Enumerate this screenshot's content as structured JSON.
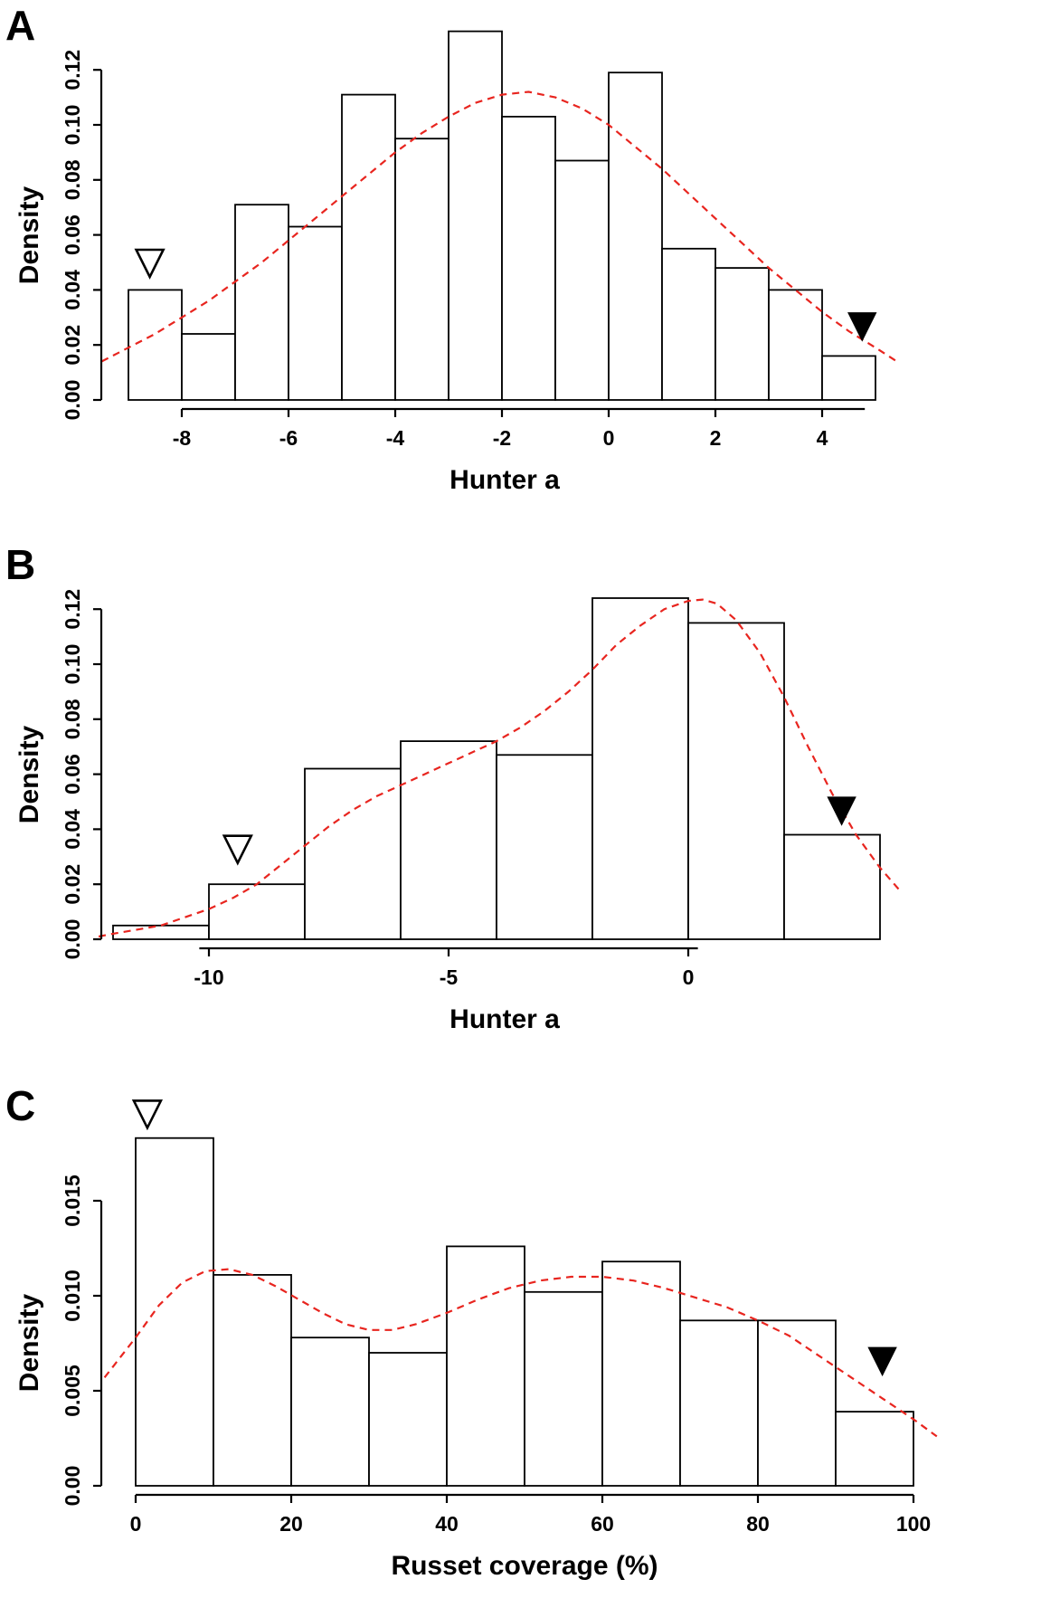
{
  "figure": {
    "background": "#ffffff",
    "curve_color": "#e8251f",
    "axis_color": "#000000",
    "bar_fill": "#ffffff"
  },
  "chart_data": [
    {
      "type": "bar",
      "subtype": "histogram",
      "panel_label": "A",
      "xlabel": "Hunter a",
      "ylabel": "Density",
      "bin_start": -9,
      "bin_width": 1,
      "values": [
        0.04,
        0.024,
        0.071,
        0.063,
        0.111,
        0.095,
        0.134,
        0.103,
        0.087,
        0.119,
        0.055,
        0.048,
        0.04,
        0.016
      ],
      "xticks": [
        -8,
        -6,
        -4,
        -2,
        0,
        2,
        4
      ],
      "xtick_labels": [
        "-8",
        "-6",
        "-4",
        "-2",
        "0",
        "2",
        "4"
      ],
      "yticks": [
        0,
        0.02,
        0.04,
        0.06,
        0.08,
        0.1,
        0.12
      ],
      "ytick_labels": [
        "0.00",
        "0.02",
        "0.04",
        "0.06",
        "0.08",
        "0.10",
        "0.12"
      ],
      "xlim": [
        -9.6,
        5.5
      ],
      "ylim": [
        0,
        0.138
      ],
      "axis_x_range": [
        -8,
        4.8
      ],
      "axis_y_range": [
        0,
        0.12
      ],
      "grid": false,
      "legend": "none",
      "density_curve": [
        [
          -9.5,
          0.014
        ],
        [
          -9,
          0.019
        ],
        [
          -8.5,
          0.024
        ],
        [
          -8,
          0.03
        ],
        [
          -7.5,
          0.036
        ],
        [
          -7,
          0.043
        ],
        [
          -6.5,
          0.05
        ],
        [
          -6,
          0.058
        ],
        [
          -5.5,
          0.066
        ],
        [
          -5,
          0.074
        ],
        [
          -4.5,
          0.082
        ],
        [
          -4,
          0.09
        ],
        [
          -3.5,
          0.097
        ],
        [
          -3,
          0.103
        ],
        [
          -2.5,
          0.108
        ],
        [
          -2,
          0.111
        ],
        [
          -1.5,
          0.112
        ],
        [
          -1,
          0.11
        ],
        [
          -0.5,
          0.106
        ],
        [
          0,
          0.1
        ],
        [
          0.5,
          0.092
        ],
        [
          1,
          0.084
        ],
        [
          1.5,
          0.075
        ],
        [
          2,
          0.066
        ],
        [
          2.5,
          0.057
        ],
        [
          3,
          0.048
        ],
        [
          3.5,
          0.04
        ],
        [
          4,
          0.032
        ],
        [
          4.5,
          0.025
        ],
        [
          5,
          0.019
        ],
        [
          5.4,
          0.014
        ]
      ],
      "markers": [
        {
          "shape": "triangle-down-open",
          "x": -8.6,
          "y": 0.05
        },
        {
          "shape": "triangle-down-filled",
          "x": 4.75,
          "y": 0.027
        }
      ]
    },
    {
      "type": "bar",
      "subtype": "histogram",
      "panel_label": "B",
      "xlabel": "Hunter a",
      "ylabel": "Density",
      "bin_start": -12,
      "bin_width": 2,
      "values": [
        0.005,
        0.02,
        0.062,
        0.072,
        0.067,
        0.124,
        0.115,
        0.038
      ],
      "xticks": [
        -10,
        -5,
        0
      ],
      "xtick_labels": [
        "-10",
        "-5",
        "0"
      ],
      "yticks": [
        0,
        0.02,
        0.04,
        0.06,
        0.08,
        0.1,
        0.12
      ],
      "ytick_labels": [
        "0.00",
        "0.02",
        "0.04",
        "0.06",
        "0.08",
        "0.10",
        "0.12"
      ],
      "xlim": [
        -12.5,
        4.6
      ],
      "ylim": [
        0,
        0.13
      ],
      "axis_x_range": [
        -10.2,
        0.2
      ],
      "axis_y_range": [
        0,
        0.12
      ],
      "grid": false,
      "legend": "none",
      "density_curve": [
        [
          -12.3,
          0.001
        ],
        [
          -12,
          0.002
        ],
        [
          -11,
          0.005
        ],
        [
          -10,
          0.011
        ],
        [
          -9.5,
          0.015
        ],
        [
          -9,
          0.02
        ],
        [
          -8.5,
          0.027
        ],
        [
          -8,
          0.034
        ],
        [
          -7.5,
          0.041
        ],
        [
          -7,
          0.047
        ],
        [
          -6.5,
          0.052
        ],
        [
          -6,
          0.056
        ],
        [
          -5.5,
          0.06
        ],
        [
          -5,
          0.064
        ],
        [
          -4.5,
          0.068
        ],
        [
          -4,
          0.072
        ],
        [
          -3.5,
          0.077
        ],
        [
          -3,
          0.083
        ],
        [
          -2.5,
          0.09
        ],
        [
          -2,
          0.098
        ],
        [
          -1.5,
          0.107
        ],
        [
          -1,
          0.114
        ],
        [
          -0.5,
          0.12
        ],
        [
          0,
          0.123
        ],
        [
          0.3,
          0.1235
        ],
        [
          0.6,
          0.122
        ],
        [
          1,
          0.116
        ],
        [
          1.5,
          0.104
        ],
        [
          2,
          0.088
        ],
        [
          2.5,
          0.07
        ],
        [
          3,
          0.053
        ],
        [
          3.5,
          0.038
        ],
        [
          4,
          0.026
        ],
        [
          4.4,
          0.018
        ]
      ],
      "markers": [
        {
          "shape": "triangle-down-open",
          "x": -9.4,
          "y": 0.033
        },
        {
          "shape": "triangle-down-filled",
          "x": 3.2,
          "y": 0.047
        }
      ]
    },
    {
      "type": "bar",
      "subtype": "histogram",
      "panel_label": "C",
      "xlabel": "Russet coverage (%)",
      "ylabel": "Density",
      "bin_start": 0,
      "bin_width": 10,
      "values": [
        0.0183,
        0.0111,
        0.0078,
        0.007,
        0.0126,
        0.0102,
        0.0118,
        0.0087,
        0.0087,
        0.0039
      ],
      "xticks": [
        0,
        20,
        40,
        60,
        80,
        100
      ],
      "xtick_labels": [
        "0",
        "20",
        "40",
        "60",
        "80",
        "100"
      ],
      "yticks": [
        0,
        0.005,
        0.01,
        0.015
      ],
      "ytick_labels": [
        "0.00",
        "0.005",
        "0.010",
        "0.015"
      ],
      "xlim": [
        -4,
        104
      ],
      "ylim": [
        0,
        0.0198
      ],
      "axis_x_range": [
        0,
        100
      ],
      "axis_y_range": [
        0,
        0.015
      ],
      "grid": false,
      "legend": "none",
      "density_curve": [
        [
          -4,
          0.0057
        ],
        [
          0,
          0.0078
        ],
        [
          3,
          0.0095
        ],
        [
          6,
          0.0107
        ],
        [
          9,
          0.0113
        ],
        [
          12,
          0.0114
        ],
        [
          15,
          0.0111
        ],
        [
          18,
          0.0105
        ],
        [
          21,
          0.0098
        ],
        [
          24,
          0.0091
        ],
        [
          27,
          0.0085
        ],
        [
          30,
          0.0082
        ],
        [
          33,
          0.0082
        ],
        [
          36,
          0.0085
        ],
        [
          40,
          0.0091
        ],
        [
          44,
          0.0098
        ],
        [
          48,
          0.0104
        ],
        [
          52,
          0.0108
        ],
        [
          56,
          0.011
        ],
        [
          60,
          0.011
        ],
        [
          64,
          0.0108
        ],
        [
          68,
          0.0104
        ],
        [
          72,
          0.0099
        ],
        [
          76,
          0.0094
        ],
        [
          80,
          0.0087
        ],
        [
          84,
          0.0079
        ],
        [
          88,
          0.0068
        ],
        [
          92,
          0.0057
        ],
        [
          96,
          0.0046
        ],
        [
          100,
          0.0035
        ],
        [
          103,
          0.0026
        ]
      ],
      "markers": [
        {
          "shape": "triangle-down-open",
          "x": 1.5,
          "y": 0.0196
        },
        {
          "shape": "triangle-down-filled",
          "x": 96,
          "y": 0.0066
        }
      ]
    }
  ]
}
